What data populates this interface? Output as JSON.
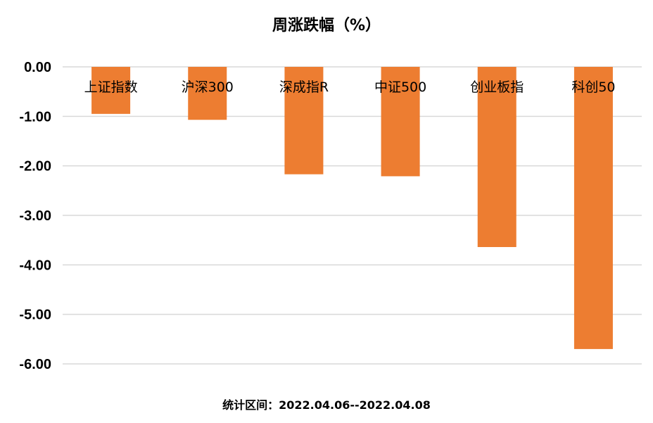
{
  "chart_data": {
    "type": "bar",
    "title": "周涨跌幅（%）",
    "categories": [
      "上证指数",
      "沪深300",
      "深成指R",
      "中证500",
      "创业板指",
      "科创50"
    ],
    "values": [
      -0.95,
      -1.07,
      -2.17,
      -2.21,
      -3.64,
      -5.7
    ],
    "ylim": [
      -6.0,
      0.0
    ],
    "yticks": [
      "0.00",
      "-1.00",
      "-2.00",
      "-3.00",
      "-4.00",
      "-5.00",
      "-6.00"
    ],
    "grid": true,
    "bar_color": "#ED7D31",
    "grid_color": "#D9D9D9"
  },
  "footnote": "统计区间：2022.04.06--2022.04.08"
}
